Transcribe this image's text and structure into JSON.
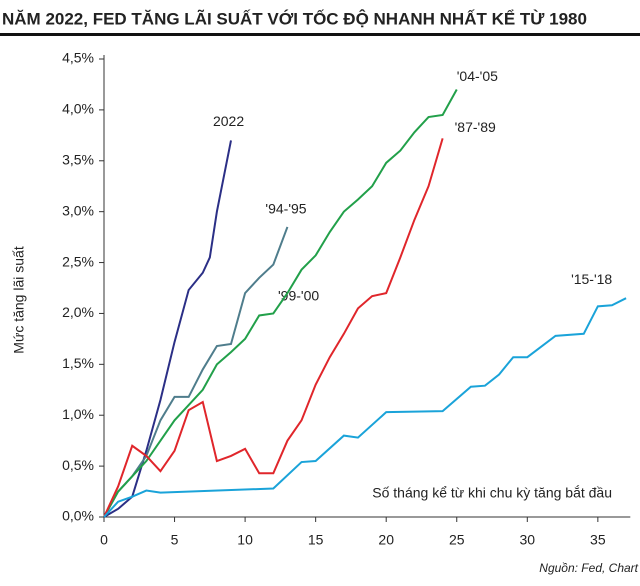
{
  "chart_data": {
    "type": "line",
    "title": "NĂM 2022, FED TĂNG LÃI SUẤT VỚI TỐC ĐỘ NHANH NHẤT KỂ TỪ 1980",
    "y_label": "Mức tăng lãi suất",
    "x_label": "Số tháng kể từ khi chu kỳ tăng bắt đầu",
    "source": "Nguồn: Fed, Chart",
    "annotations": [
      "'99-'00"
    ],
    "xlim": [
      0,
      37.3
    ],
    "xticks": [
      0,
      5,
      10,
      15,
      20,
      25,
      30,
      35
    ],
    "ylim": [
      0,
      4.5
    ],
    "yticks": [
      {
        "value": 0,
        "label": "0,0%"
      },
      {
        "value": 0.5,
        "label": "0,5%"
      },
      {
        "value": 1,
        "label": "1,0%"
      },
      {
        "value": 1.5,
        "label": "1,5%"
      },
      {
        "value": 2,
        "label": "2,0%"
      },
      {
        "value": 2.5,
        "label": "2,5%"
      },
      {
        "value": 3,
        "label": "3,0%"
      },
      {
        "value": 3.5,
        "label": "3,5%"
      },
      {
        "value": 4,
        "label": "4,0%"
      },
      {
        "value": 4.5,
        "label": "4,5%"
      }
    ],
    "series": [
      {
        "name": "2022",
        "color": "#2b2f86",
        "x": [
          0,
          1,
          2,
          3,
          4,
          5,
          6,
          7,
          7.5,
          8,
          9
        ],
        "values": [
          0,
          0.08,
          0.2,
          0.65,
          1.15,
          1.72,
          2.23,
          2.4,
          2.55,
          3.0,
          3.7
        ]
      },
      {
        "name": "'94-'95",
        "color": "#4f7d8c",
        "x": [
          0,
          1,
          2,
          3,
          4,
          5,
          6,
          7,
          8,
          9,
          10,
          11,
          12,
          13
        ],
        "values": [
          0,
          0.25,
          0.4,
          0.6,
          0.95,
          1.18,
          1.18,
          1.45,
          1.68,
          1.7,
          2.2,
          2.35,
          2.48,
          2.85
        ]
      },
      {
        "name": "'04-'05",
        "color": "#22a04a",
        "x": [
          0,
          1,
          2,
          3,
          4,
          5,
          6,
          7,
          8,
          9,
          10,
          11,
          12,
          13,
          14,
          15,
          16,
          17,
          18,
          19,
          20,
          21,
          22,
          23,
          24,
          25
        ],
        "values": [
          0,
          0.25,
          0.4,
          0.55,
          0.75,
          0.95,
          1.1,
          1.25,
          1.5,
          1.62,
          1.75,
          1.98,
          2.0,
          2.2,
          2.43,
          2.57,
          2.8,
          3.0,
          3.12,
          3.25,
          3.48,
          3.6,
          3.78,
          3.93,
          3.95,
          4.2
        ]
      },
      {
        "name": "'87-'89",
        "color": "#e0262b",
        "x": [
          0,
          1,
          2,
          3,
          4,
          5,
          6,
          7,
          8,
          9,
          10,
          11,
          12,
          13,
          14,
          15,
          16,
          17,
          18,
          19,
          20,
          21,
          22,
          23,
          24
        ],
        "values": [
          0,
          0.3,
          0.7,
          0.6,
          0.45,
          0.65,
          1.05,
          1.13,
          0.55,
          0.6,
          0.67,
          0.43,
          0.43,
          0.75,
          0.95,
          1.3,
          1.57,
          1.8,
          2.05,
          2.17,
          2.2,
          2.55,
          2.92,
          3.25,
          3.72
        ]
      },
      {
        "name": "'15-'18",
        "color": "#1aa3d9",
        "x": [
          0,
          1,
          2,
          3,
          4,
          12,
          14,
          15,
          17,
          18,
          20,
          24,
          26,
          27,
          28,
          29,
          30,
          32,
          34,
          35,
          36,
          37
        ],
        "values": [
          0,
          0.15,
          0.2,
          0.26,
          0.24,
          0.28,
          0.54,
          0.55,
          0.8,
          0.78,
          1.03,
          1.04,
          1.28,
          1.29,
          1.4,
          1.57,
          1.57,
          1.78,
          1.8,
          2.07,
          2.08,
          2.15
        ]
      }
    ]
  }
}
